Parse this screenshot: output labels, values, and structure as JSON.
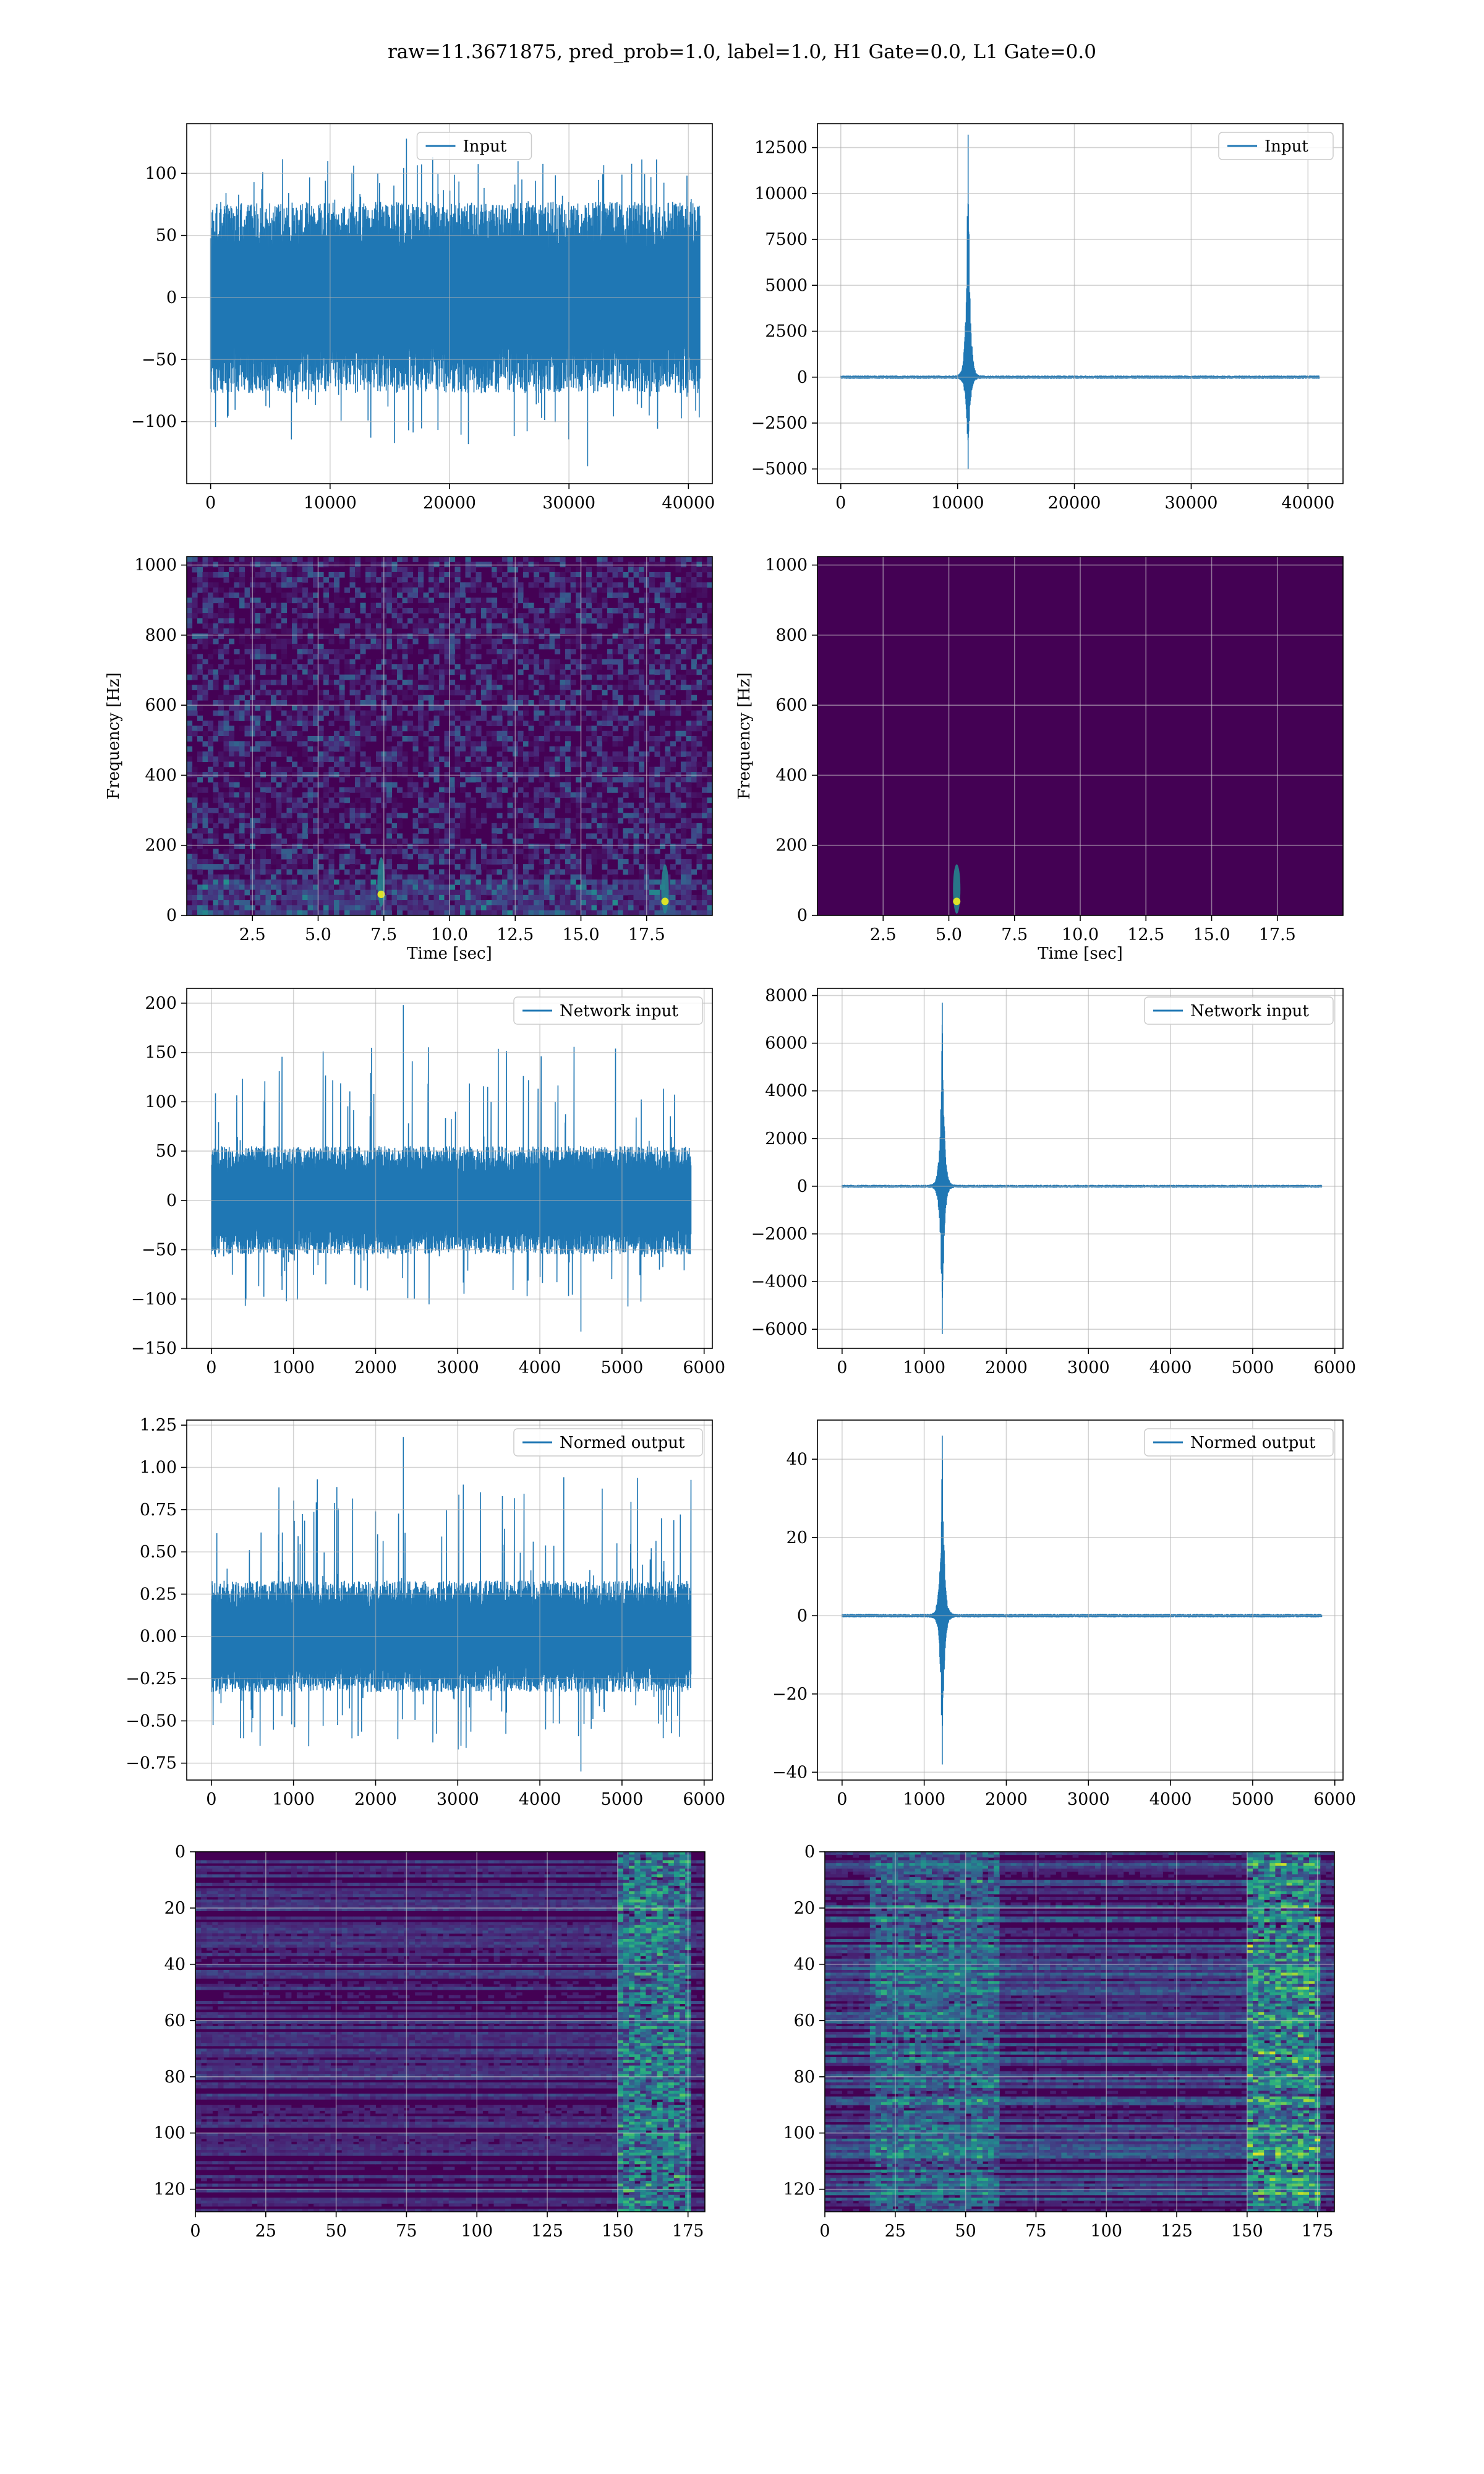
{
  "title": "raw=11.3671875, pred_prob=1.0, label=1.0, H1 Gate=0.0, L1 Gate=0.0",
  "colors": {
    "line": "#1f77b4",
    "viridis_dark": "#440154",
    "grid": "#b0b0b0"
  },
  "chart_data": [
    {
      "id": "input-h1",
      "type": "line",
      "legend": "Input",
      "xlim": [
        -2000,
        42000
      ],
      "ylim": [
        -150,
        140
      ],
      "xticks": [
        0,
        10000,
        20000,
        30000,
        40000
      ],
      "yticks": [
        -100,
        -50,
        0,
        50,
        100
      ],
      "signal": {
        "kind": "noise",
        "n": 40960,
        "band": [
          -70,
          70
        ],
        "peak_max": 128,
        "peak_min": -136
      }
    },
    {
      "id": "input-l1",
      "type": "line",
      "legend": "Input",
      "xlim": [
        -2000,
        43000
      ],
      "ylim": [
        -5800,
        13800
      ],
      "xticks": [
        0,
        10000,
        20000,
        30000,
        40000
      ],
      "yticks": [
        -5000,
        -2500,
        0,
        2500,
        5000,
        7500,
        10000,
        12500
      ],
      "signal": {
        "kind": "spike",
        "n": 40960,
        "t0": 10900,
        "max": 13200,
        "min": -5000,
        "noise": 60
      }
    },
    {
      "id": "spec-h1",
      "type": "heatmap",
      "xlabel": "Time [sec]",
      "ylabel": "Frequency [Hz]",
      "xlim": [
        0,
        20
      ],
      "ylim": [
        0,
        1024
      ],
      "xticks": [
        2.5,
        5.0,
        7.5,
        10.0,
        12.5,
        15.0,
        17.5
      ],
      "yticks": [
        0,
        200,
        400,
        600,
        800,
        1000
      ],
      "hotspots": [
        {
          "t": 18.2,
          "f": 40
        },
        {
          "t": 7.4,
          "f": 60
        }
      ]
    },
    {
      "id": "spec-l1",
      "type": "heatmap",
      "xlabel": "Time [sec]",
      "ylabel": "Frequency [Hz]",
      "xlim": [
        0,
        20
      ],
      "ylim": [
        0,
        1024
      ],
      "xticks": [
        2.5,
        5.0,
        7.5,
        10.0,
        12.5,
        15.0,
        17.5
      ],
      "yticks": [
        0,
        200,
        400,
        600,
        800,
        1000
      ],
      "hotspots": [
        {
          "t": 5.3,
          "f": 40
        }
      ]
    },
    {
      "id": "net-h1",
      "type": "line",
      "legend": "Network input",
      "xlim": [
        -300,
        6100
      ],
      "ylim": [
        -150,
        215
      ],
      "xticks": [
        0,
        1000,
        2000,
        3000,
        4000,
        5000,
        6000
      ],
      "yticks": [
        -150,
        -100,
        -50,
        0,
        50,
        100,
        150,
        200
      ],
      "signal": {
        "kind": "noise",
        "n": 5840,
        "band": [
          -50,
          50
        ],
        "peak_max": 198,
        "peak_min": -133
      }
    },
    {
      "id": "net-l1",
      "type": "line",
      "legend": "Network input",
      "xlim": [
        -300,
        6100
      ],
      "ylim": [
        -6800,
        8300
      ],
      "xticks": [
        0,
        1000,
        2000,
        3000,
        4000,
        5000,
        6000
      ],
      "yticks": [
        -6000,
        -4000,
        -2000,
        0,
        2000,
        4000,
        6000,
        8000
      ],
      "signal": {
        "kind": "spike",
        "n": 5840,
        "t0": 1220,
        "max": 7700,
        "min": -6200,
        "noise": 40
      }
    },
    {
      "id": "norm-h1",
      "type": "line",
      "legend": "Normed output",
      "xlim": [
        -300,
        6100
      ],
      "ylim": [
        -0.85,
        1.28
      ],
      "xticks": [
        0,
        1000,
        2000,
        3000,
        4000,
        5000,
        6000
      ],
      "yticks": [
        -0.75,
        -0.5,
        -0.25,
        0.0,
        0.25,
        0.5,
        0.75,
        1.0,
        1.25
      ],
      "signal": {
        "kind": "noise",
        "n": 5840,
        "band": [
          -0.3,
          0.3
        ],
        "peak_max": 1.18,
        "peak_min": -0.8
      }
    },
    {
      "id": "norm-l1",
      "type": "line",
      "legend": "Normed output",
      "xlim": [
        -300,
        6100
      ],
      "ylim": [
        -42,
        50
      ],
      "xticks": [
        0,
        1000,
        2000,
        3000,
        4000,
        5000,
        6000
      ],
      "yticks": [
        -40,
        -20,
        0,
        20,
        40
      ],
      "signal": {
        "kind": "spike",
        "n": 5840,
        "t0": 1220,
        "max": 46,
        "min": -38,
        "noise": 0.3
      }
    },
    {
      "id": "feat-h1",
      "type": "heatmap",
      "xlim": [
        0,
        181
      ],
      "ylim": [
        128,
        0
      ],
      "xticks": [
        0,
        25,
        50,
        75,
        100,
        125,
        150,
        175
      ],
      "yticks": [
        0,
        20,
        40,
        60,
        80,
        100,
        120
      ]
    },
    {
      "id": "feat-l1",
      "type": "heatmap",
      "xlim": [
        0,
        181
      ],
      "ylim": [
        128,
        0
      ],
      "xticks": [
        0,
        25,
        50,
        75,
        100,
        125,
        150,
        175
      ],
      "yticks": [
        0,
        20,
        40,
        60,
        80,
        100,
        120
      ]
    }
  ]
}
